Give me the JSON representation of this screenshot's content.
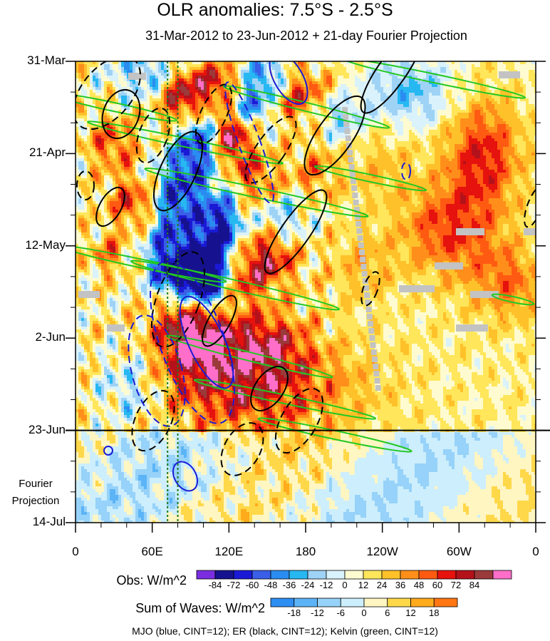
{
  "title": "OLR anomalies: 7.5°S - 2.5°S",
  "subtitle": "31-Mar-2012 to 23-Jun-2012 + 21-day Fourier Projection",
  "projection_label_1": "Fourier",
  "projection_label_2": "Projection",
  "footer": "MJO (blue, CINT=12); ER (black, CINT=12); Kelvin (green, CINT=12)",
  "chart_data": {
    "type": "heatmap",
    "title": "OLR anomalies: 7.5°S - 2.5°S",
    "subtitle": "31-Mar-2012 to 23-Jun-2012 + 21-day Fourier Projection",
    "x_ticks": [
      "0",
      "60E",
      "120E",
      "180",
      "120W",
      "60W",
      "0"
    ],
    "x_tick_lon": [
      0,
      60,
      120,
      180,
      240,
      300,
      360
    ],
    "y_ticks": [
      "31-Mar",
      "21-Apr",
      "12-May",
      "2-Jun",
      "23-Jun",
      "14-Jul"
    ],
    "y_tick_day": [
      0,
      21,
      42,
      63,
      84,
      105
    ],
    "observation_end": "23-Jun",
    "projection_days": 21,
    "reference_lines_lon": [
      72,
      80
    ],
    "obs_colorbar": {
      "label": "Obs: W/m^2",
      "levels": [
        -84,
        -72,
        -60,
        -48,
        -36,
        -24,
        -12,
        0,
        12,
        24,
        36,
        48,
        60,
        72,
        84
      ],
      "colors": [
        "#7a2ee0",
        "#16128f",
        "#1a1ad6",
        "#3a5ee6",
        "#2a8cf0",
        "#27b8f2",
        "#9fd3f6",
        "#d9f2fb",
        "#fffbd0",
        "#ffe65a",
        "#ffc12a",
        "#ff8f1a",
        "#ff5a12",
        "#e6120e",
        "#b4121a",
        "#9a3a3a",
        "#ff6ec8"
      ]
    },
    "waves_colorbar": {
      "label": "Sum of Waves: W/m^2",
      "levels": [
        -18,
        -12,
        -6,
        0,
        6,
        12,
        18
      ],
      "colors": [
        "#2e8ef2",
        "#5cb4f7",
        "#96d2f9",
        "#cdeefc",
        "#fff6c2",
        "#ffd84a",
        "#ffab1c",
        "#ff7612"
      ]
    },
    "contours": [
      {
        "name": "MJO",
        "color": "blue",
        "cint": 12
      },
      {
        "name": "ER",
        "color": "black",
        "cint": 12
      },
      {
        "name": "Kelvin",
        "color": "green",
        "cint": 12
      }
    ]
  }
}
